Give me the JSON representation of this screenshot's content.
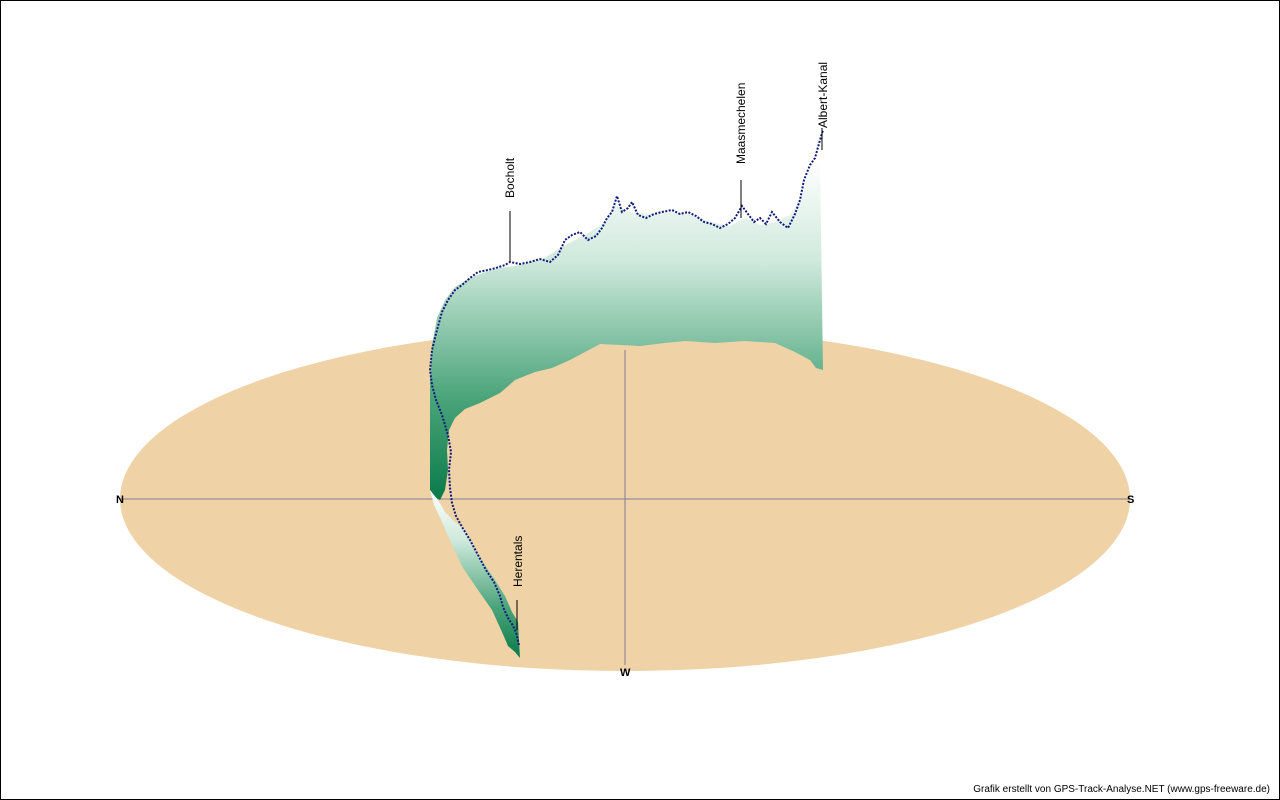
{
  "directions": {
    "north": "N",
    "south": "S",
    "west": "W"
  },
  "places": [
    "Bocholt",
    "Maasmechelen",
    "Albert-Kanal",
    "Herentals"
  ],
  "credit": "Grafik erstellt von GPS-Track-Analyse.NET (www.gps-freeware.de)",
  "colors": {
    "ground": "#efd2a6",
    "axis": "#7f7f99",
    "curtain_top": "#e8f4ee",
    "curtain_bottom": "#0a7a4a",
    "track": "#0d1a7a"
  }
}
